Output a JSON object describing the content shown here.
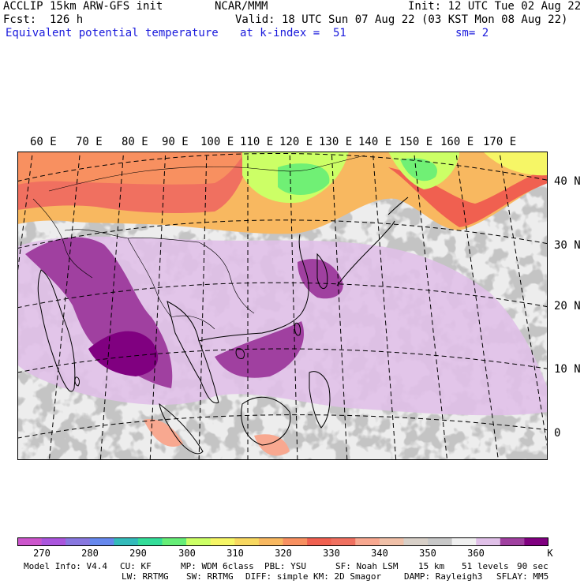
{
  "header": {
    "model": "ACCLIP 15km ARW-GFS init",
    "org": "NCAR/MMM",
    "init": "Init: 12 UTC Tue 02 Aug 22",
    "fcst": "Fcst:  126 h",
    "valid": "Valid: 18 UTC Sun 07 Aug 22 (03 KST Mon 08 Aug 22)",
    "field": "Equivalent potential temperature",
    "level": "at k-index =  51",
    "smooth": "sm= 2"
  },
  "map": {
    "lon_labels": [
      "60 E",
      "70 E",
      "80 E",
      "90 E",
      "100 E",
      "110 E",
      "120 E",
      "130 E",
      "140 E",
      "150 E",
      "160 E",
      "170 E"
    ],
    "lat_labels": [
      "40 N",
      "30 N",
      "20 N",
      "10 N",
      "0"
    ]
  },
  "colorbar": {
    "unit": "K",
    "ticks": [
      "270",
      "280",
      "290",
      "300",
      "310",
      "320",
      "330",
      "340",
      "350",
      "360"
    ],
    "colors": [
      "#cc55cc",
      "#aa55dd",
      "#8877e0",
      "#6688ee",
      "#33bbbb",
      "#33dd99",
      "#66ee77",
      "#ccff66",
      "#f6f666",
      "#f8d860",
      "#f8b860",
      "#f89060",
      "#f06050",
      "#f07060",
      "#f8a890",
      "#f0c0a8",
      "#d8d0c8",
      "#c8c8c8",
      "#f0f0f0",
      "#e0c0e8",
      "#a040a0",
      "#800080"
    ]
  },
  "footer": {
    "line1": [
      "Model Info: V4.4",
      "CU: KF",
      "MP: WDM 6class",
      "PBL: YSU",
      "SF: Noah LSM",
      "15 km",
      "51 levels",
      "90 sec"
    ],
    "line2": [
      "LW: RRTMG",
      "SW: RRTMG",
      "DIFF: simple",
      "KM: 2D Smagor",
      "DAMP: Rayleigh3",
      "SFLAY: MM5"
    ]
  }
}
